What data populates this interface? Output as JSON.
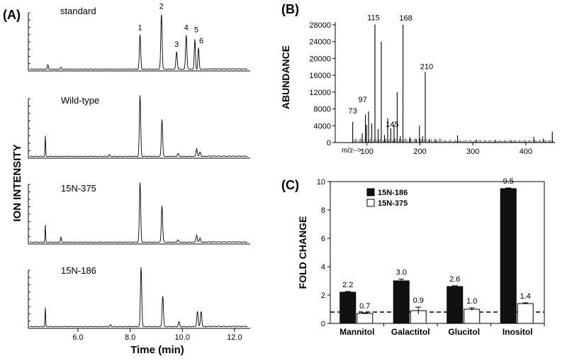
{
  "chart_data": [
    {
      "panel": "(A)",
      "type": "line",
      "ylabel": "ION INTENSITY",
      "xlabel": "Time (min)",
      "xlim": [
        4.1,
        12.6
      ],
      "xticks": [
        "6.0",
        "8.0",
        "10.0",
        "12.0"
      ],
      "xtick_values": [
        6.0,
        8.0,
        10.0,
        12.0
      ],
      "traces": [
        {
          "name": "standard",
          "peak_labels": [
            "1",
            "2",
            "3",
            "4",
            "5",
            "6"
          ],
          "peaks": [
            {
              "t": 4.85,
              "h": 0.08,
              "w": 0.018
            },
            {
              "t": 5.35,
              "h": 0.03,
              "w": 0.018
            },
            {
              "t": 8.38,
              "h": 0.58,
              "w": 0.025,
              "label": "1"
            },
            {
              "t": 9.2,
              "h": 0.94,
              "w": 0.025,
              "label": "2"
            },
            {
              "t": 9.78,
              "h": 0.3,
              "w": 0.025,
              "label": "3"
            },
            {
              "t": 10.15,
              "h": 0.58,
              "w": 0.025,
              "label": "4"
            },
            {
              "t": 10.48,
              "h": 0.5,
              "w": 0.022,
              "label": "5"
            },
            {
              "t": 10.62,
              "h": 0.36,
              "w": 0.022,
              "label": "6"
            }
          ]
        },
        {
          "name": "Wild-type",
          "peaks": [
            {
              "t": 4.75,
              "h": 0.34,
              "w": 0.012
            },
            {
              "t": 7.2,
              "h": 0.03,
              "w": 0.02
            },
            {
              "t": 8.38,
              "h": 1.0,
              "w": 0.025
            },
            {
              "t": 9.22,
              "h": 0.61,
              "w": 0.025
            },
            {
              "t": 9.83,
              "h": 0.05,
              "w": 0.025
            },
            {
              "t": 10.55,
              "h": 0.13,
              "w": 0.025
            },
            {
              "t": 10.68,
              "h": 0.07,
              "w": 0.025
            }
          ]
        },
        {
          "name": "15N-375",
          "peaks": [
            {
              "t": 4.75,
              "h": 0.28,
              "w": 0.012
            },
            {
              "t": 5.35,
              "h": 0.08,
              "w": 0.018
            },
            {
              "t": 8.38,
              "h": 0.98,
              "w": 0.025
            },
            {
              "t": 9.22,
              "h": 0.6,
              "w": 0.025
            },
            {
              "t": 9.83,
              "h": 0.04,
              "w": 0.025
            },
            {
              "t": 10.55,
              "h": 0.12,
              "w": 0.025
            },
            {
              "t": 10.68,
              "h": 0.07,
              "w": 0.025
            }
          ]
        },
        {
          "name": "15N-186",
          "peaks": [
            {
              "t": 4.75,
              "h": 0.32,
              "w": 0.012
            },
            {
              "t": 7.25,
              "h": 0.03,
              "w": 0.02
            },
            {
              "t": 8.42,
              "h": 1.0,
              "w": 0.025
            },
            {
              "t": 9.25,
              "h": 0.52,
              "w": 0.025
            },
            {
              "t": 9.87,
              "h": 0.08,
              "w": 0.025
            },
            {
              "t": 10.58,
              "h": 0.26,
              "w": 0.025
            },
            {
              "t": 10.72,
              "h": 0.26,
              "w": 0.025
            }
          ]
        }
      ]
    },
    {
      "panel": "(B)",
      "type": "bar",
      "ylabel": "ABUNDANCE",
      "xlabel": "m/z-->",
      "xlim": [
        40,
        455
      ],
      "ylim": [
        0,
        28000
      ],
      "yticks": [
        "0",
        "4000",
        "8000",
        "12000",
        "16000",
        "20000",
        "24000",
        "28000"
      ],
      "ytick_values": [
        0,
        4000,
        8000,
        12000,
        16000,
        20000,
        24000,
        28000
      ],
      "xticks": [
        "100",
        "200",
        "300",
        "400"
      ],
      "xtick_values": [
        100,
        200,
        300,
        400
      ],
      "peak_labels": [
        "73",
        "97",
        "115",
        "145",
        "168",
        "210"
      ],
      "spectrum": [
        {
          "mz": 73,
          "abundance": 4900,
          "label": "73"
        },
        {
          "mz": 91,
          "abundance": 2200
        },
        {
          "mz": 97,
          "abundance": 6600,
          "label": "97"
        },
        {
          "mz": 99,
          "abundance": 4200
        },
        {
          "mz": 103,
          "abundance": 7400
        },
        {
          "mz": 109,
          "abundance": 4600
        },
        {
          "mz": 115,
          "abundance": 28100,
          "label": "115"
        },
        {
          "mz": 121,
          "abundance": 3200
        },
        {
          "mz": 127,
          "abundance": 24000
        },
        {
          "mz": 133,
          "abundance": 1800
        },
        {
          "mz": 139,
          "abundance": 5800
        },
        {
          "mz": 145,
          "abundance": 3400,
          "label": "145"
        },
        {
          "mz": 151,
          "abundance": 4200
        },
        {
          "mz": 157,
          "abundance": 12000
        },
        {
          "mz": 163,
          "abundance": 1500
        },
        {
          "mz": 168,
          "abundance": 28000,
          "label": "168"
        },
        {
          "mz": 181,
          "abundance": 1300
        },
        {
          "mz": 193,
          "abundance": 800
        },
        {
          "mz": 199,
          "abundance": 4000
        },
        {
          "mz": 205,
          "abundance": 1500
        },
        {
          "mz": 210,
          "abundance": 16800,
          "label": "210"
        },
        {
          "mz": 217,
          "abundance": 700
        },
        {
          "mz": 229,
          "abundance": 500
        },
        {
          "mz": 271,
          "abundance": 1700
        },
        {
          "mz": 307,
          "abundance": 700
        },
        {
          "mz": 343,
          "abundance": 600
        },
        {
          "mz": 373,
          "abundance": 500
        },
        {
          "mz": 415,
          "abundance": 1400
        },
        {
          "mz": 433,
          "abundance": 900
        },
        {
          "mz": 450,
          "abundance": 2600
        }
      ]
    },
    {
      "panel": "(C)",
      "type": "bar",
      "ylabel": "FOLD CHANGE",
      "ylim": [
        0,
        10
      ],
      "yticks": [
        "0",
        "2",
        "4",
        "6",
        "8",
        "10"
      ],
      "ytick_values": [
        0,
        2,
        4,
        6,
        8,
        10
      ],
      "categories": [
        "Mannitol",
        "Galactitol",
        "Glucitol",
        "Inositol"
      ],
      "reference_line": 0.8,
      "legend_position": "top-left",
      "series": [
        {
          "name": "15N-186",
          "fill": "#111111",
          "values": [
            2.2,
            3.0,
            2.6,
            9.5
          ],
          "errors": [
            0.05,
            0.12,
            0.05,
            0.05
          ],
          "value_labels": [
            "2.2",
            "3.0",
            "2.6",
            "9.5"
          ]
        },
        {
          "name": "15N-375",
          "fill": "#ffffff",
          "values": [
            0.7,
            0.9,
            1.0,
            1.4
          ],
          "errors": [
            0.05,
            0.25,
            0.1,
            0.05
          ],
          "value_labels": [
            "0.7",
            "0.9",
            "1.0",
            "1.4"
          ]
        }
      ]
    }
  ]
}
